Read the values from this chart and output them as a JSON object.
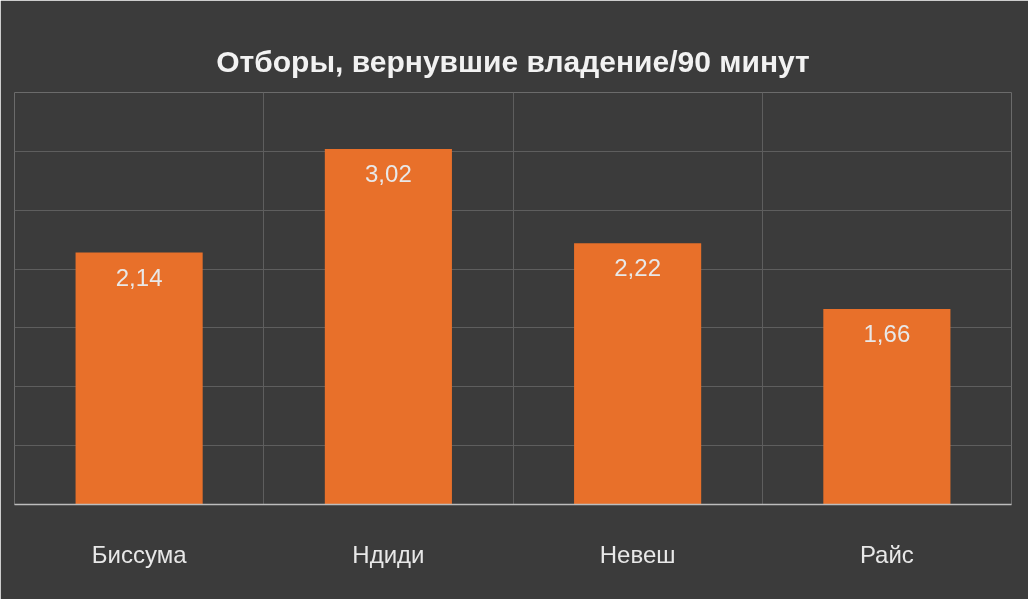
{
  "chart_data": {
    "type": "bar",
    "title": "Отборы, вернувшие владение/90 минут",
    "categories": [
      "Биссума",
      "Ндиди",
      "Невеш",
      "Райс"
    ],
    "values": [
      2.14,
      3.02,
      2.22,
      1.66
    ],
    "value_labels": [
      "2,14",
      "3,02",
      "2,22",
      "1,66"
    ],
    "color": "#e8702a",
    "ylim": [
      0,
      3.5
    ],
    "yticks": [
      {
        "value": 0,
        "label": null
      },
      {
        "value": 0.5,
        "label": null
      },
      {
        "value": 1,
        "label": null
      },
      {
        "value": 1.5,
        "label": null
      },
      {
        "value": 2,
        "label": null
      },
      {
        "value": 2.5,
        "label": null
      },
      {
        "value": 3,
        "label": null
      },
      {
        "value": 3.5,
        "label": null
      }
    ],
    "tick_labels": "x",
    "grid": true
  }
}
